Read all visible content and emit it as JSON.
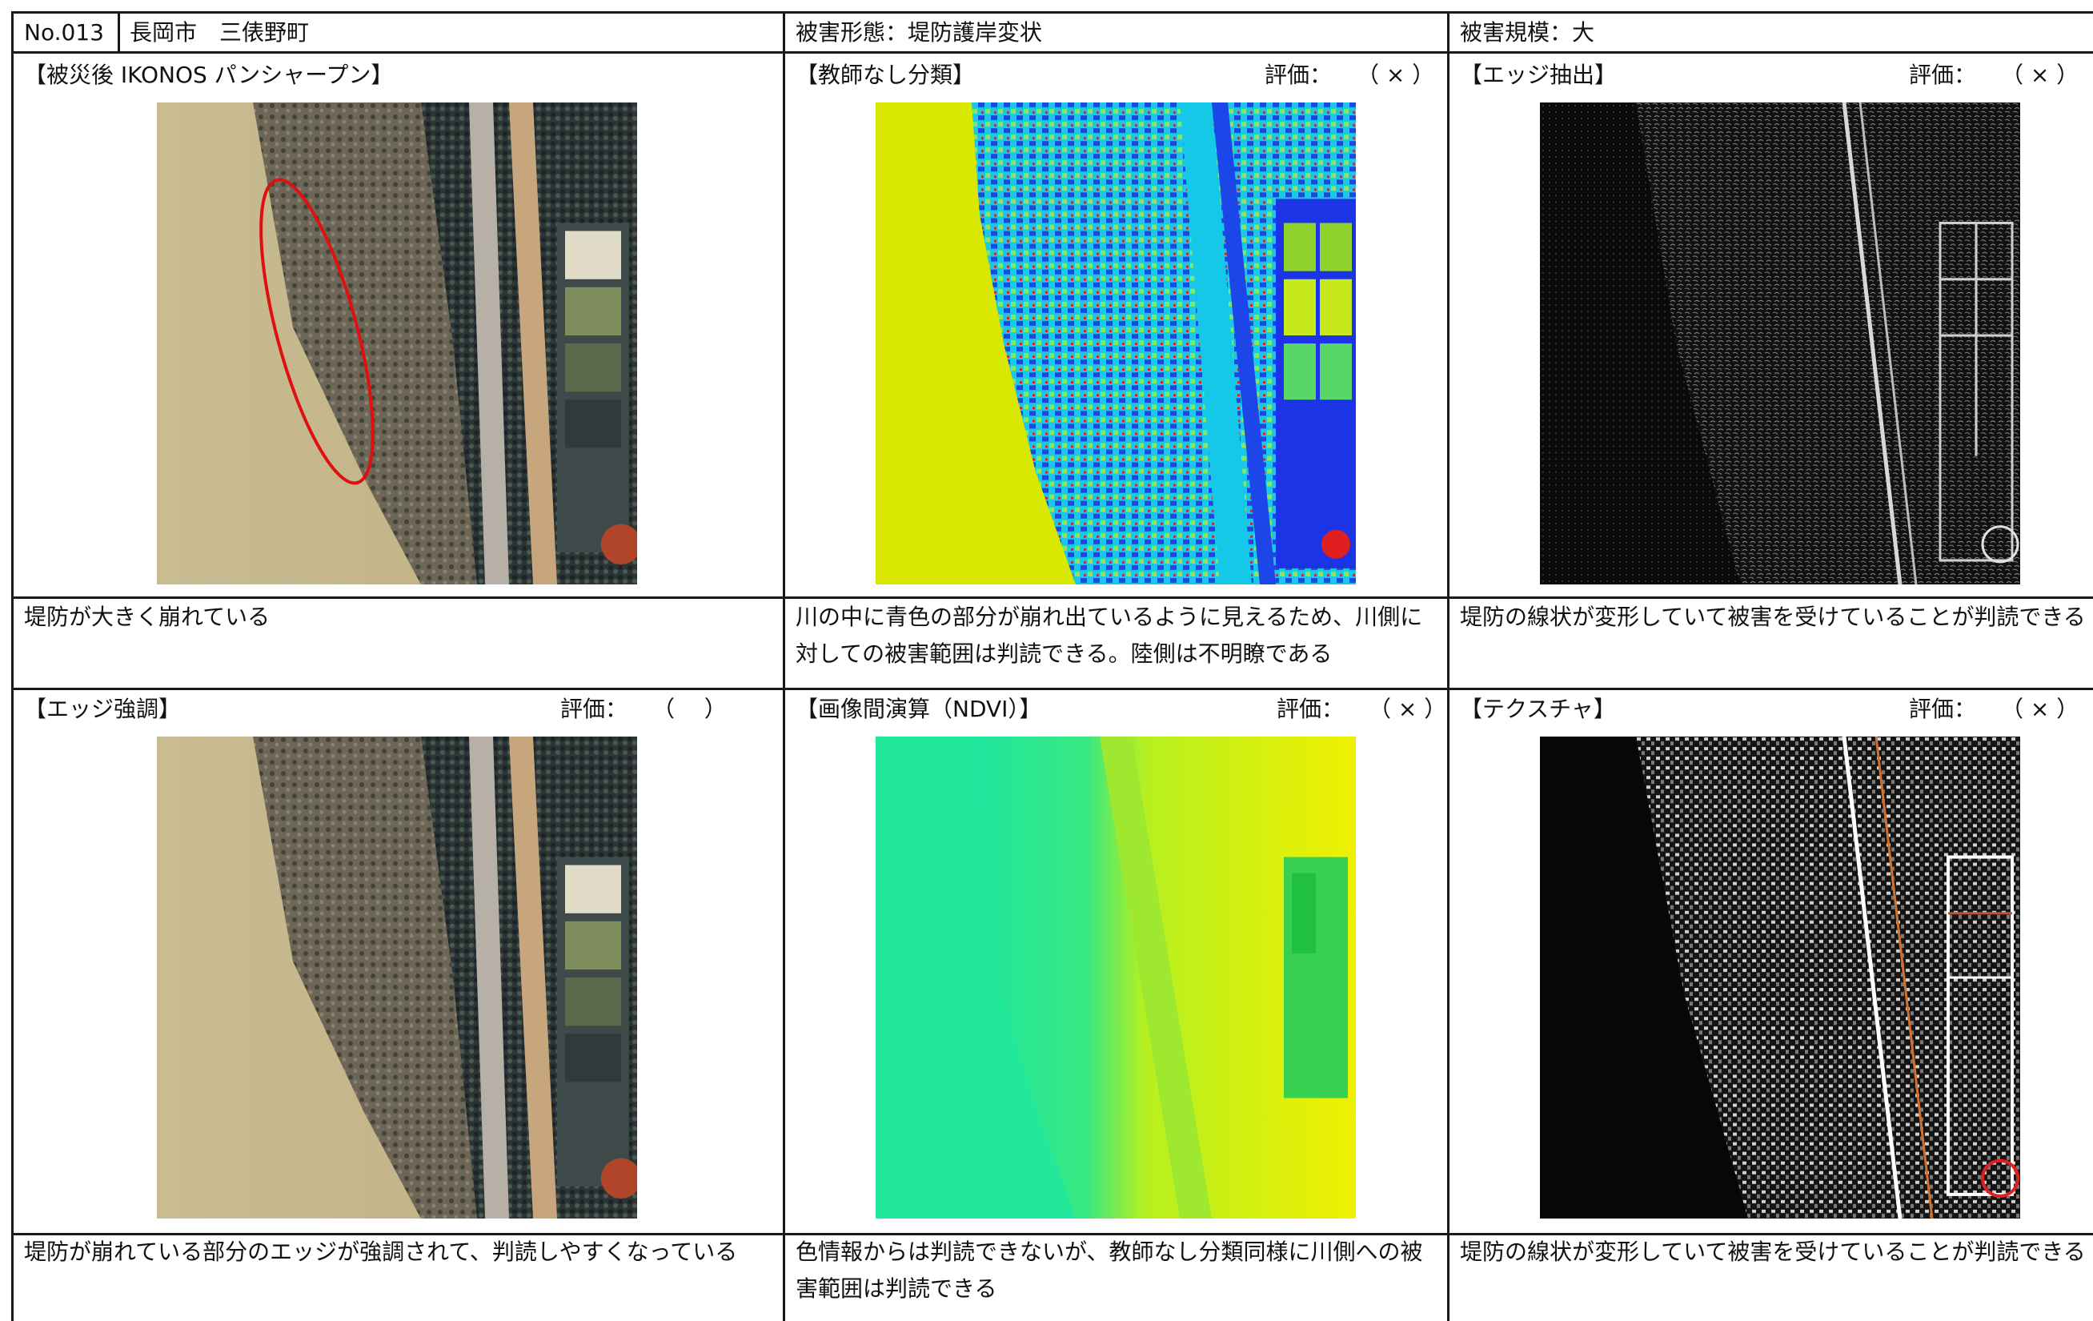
{
  "header": {
    "number": "No.013",
    "location": "長岡市　三俵野町",
    "damage_type": "被害形態：堤防護岸変状",
    "damage_scale": "被害規模：大"
  },
  "row1": {
    "panel1": {
      "title": "【被災後 IKONOS パンシャープン】"
    },
    "panel2": {
      "title": "【教師なし分類】",
      "eval_label": "評価：",
      "eval_value": "（ × ）"
    },
    "panel3": {
      "title": "【エッジ抽出】",
      "eval_label": "評価：",
      "eval_value": "（ × ）"
    },
    "captions": [
      "堤防が大きく崩れている",
      "川の中に青色の部分が崩れ出ているように見えるため、川側に対しての被害範囲は判読できる。陸側は不明瞭である",
      "堤防の線状が変形していて被害を受けていることが判読できる"
    ]
  },
  "row2": {
    "panel1": {
      "title": "【エッジ強調】",
      "eval_label": "評価：",
      "eval_value": "（　 ）"
    },
    "panel2": {
      "title": "【画像間演算（NDVI）】",
      "eval_label": "評価：",
      "eval_value": "（ × ）"
    },
    "panel3": {
      "title": "【テクスチャ】",
      "eval_label": "評価：",
      "eval_value": "（ × ）"
    },
    "captions": [
      "堤防が崩れている部分のエッジが強調されて、判読しやすくなっている",
      "色情報からは判読できないが、教師なし分類同様に川側への被害範囲は判読できる",
      "堤防の線状が変形していて被害を受けていることが判読できる"
    ]
  },
  "colors": {
    "border": "#1a1a1a",
    "highlight_ellipse": "#e01010",
    "river_sand": "#c6b88a",
    "classification_yellow": "#d8e800",
    "ndvi_green": "#20e890"
  }
}
